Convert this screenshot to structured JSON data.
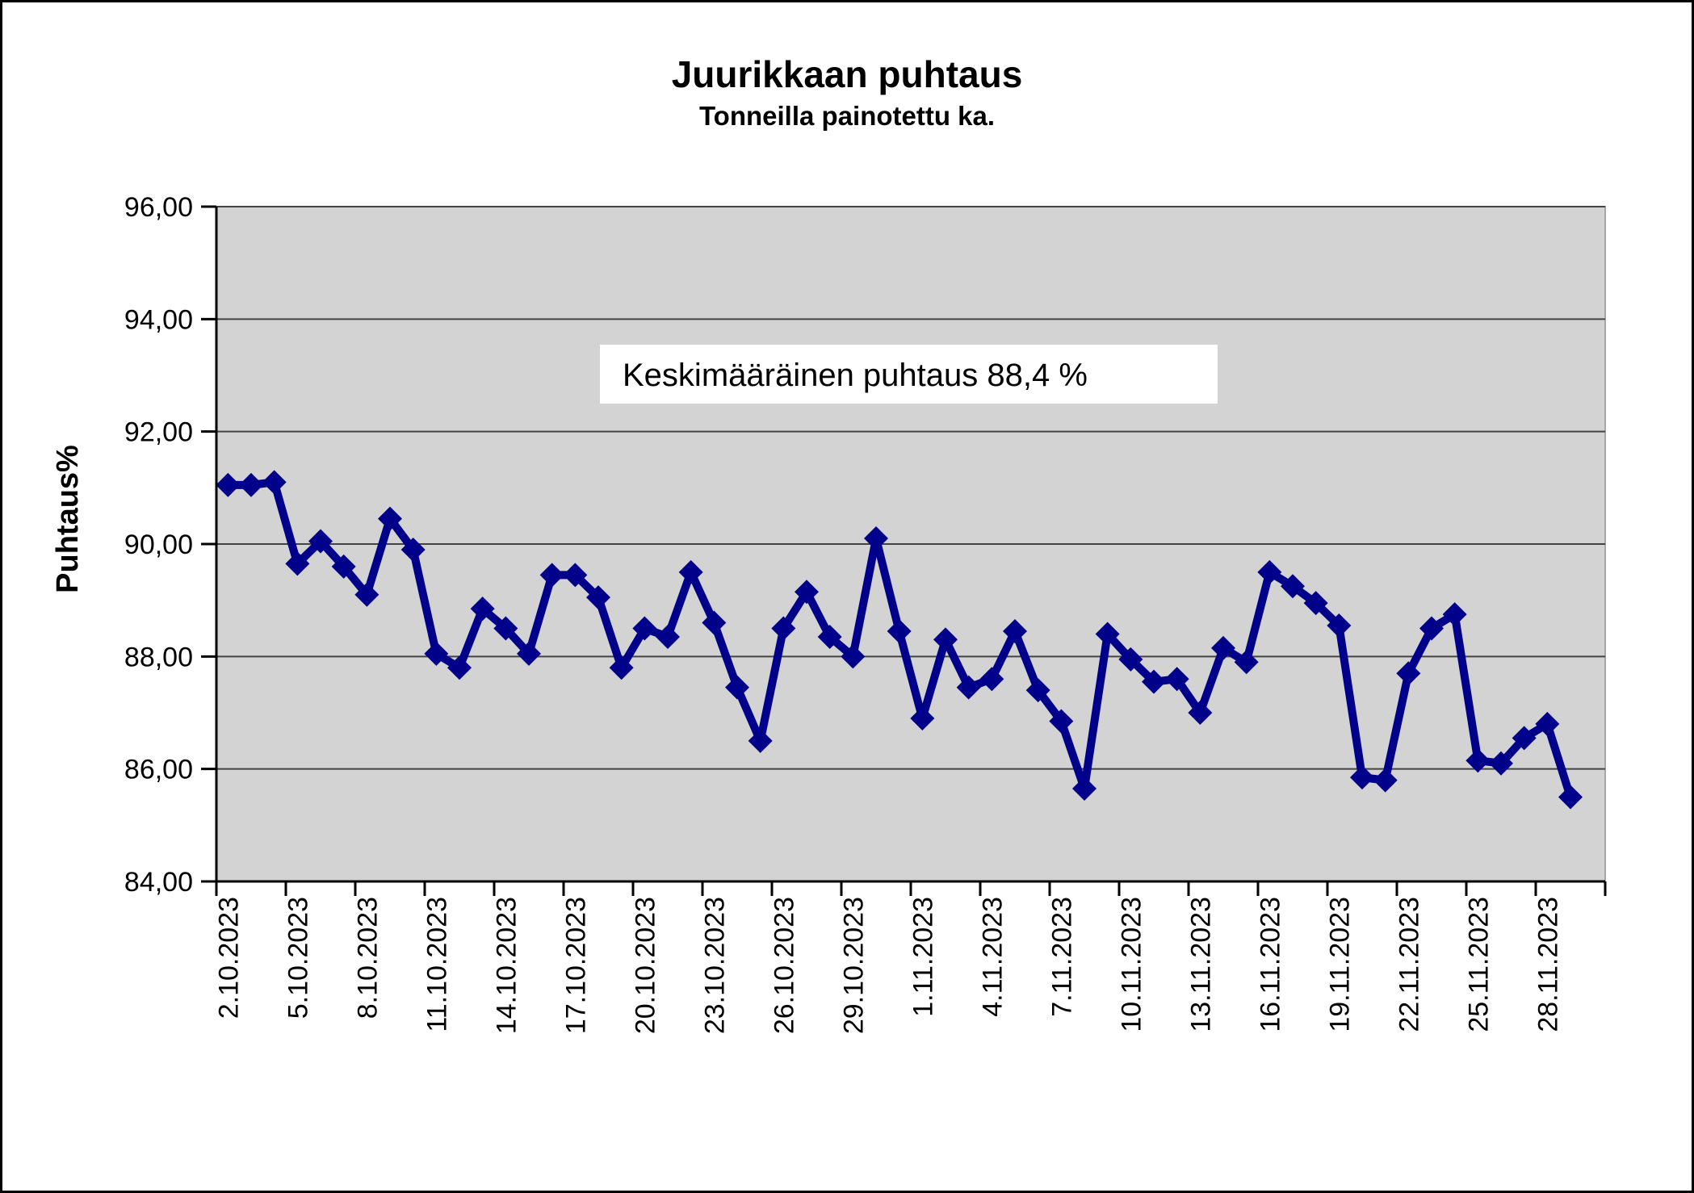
{
  "chart_data": {
    "type": "line",
    "title": "Juurikkaan puhtaus",
    "subtitle": "Tonneilla painotettu ka.",
    "ylabel": "Puhtaus%",
    "annotation": "Keskimääräinen puhtaus 88,4 %",
    "ylim": [
      84,
      96
    ],
    "ytick_step": 2,
    "yticks": [
      {
        "value": 96,
        "label": "96,00"
      },
      {
        "value": 94,
        "label": "94,00"
      },
      {
        "value": 92,
        "label": "92,00"
      },
      {
        "value": 90,
        "label": "90,00"
      },
      {
        "value": 88,
        "label": "88,00"
      },
      {
        "value": 86,
        "label": "86,00"
      },
      {
        "value": 84,
        "label": "84,00"
      }
    ],
    "grid": true,
    "legend": false,
    "marker": "diamond",
    "x_tick_labels": [
      "2.10.2023",
      "5.10.2023",
      "8.10.2023",
      "11.10.2023",
      "14.10.2023",
      "17.10.2023",
      "20.10.2023",
      "23.10.2023",
      "26.10.2023",
      "29.10.2023",
      "1.11.2023",
      "4.11.2023",
      "7.11.2023",
      "10.11.2023",
      "13.11.2023",
      "16.11.2023",
      "19.11.2023",
      "22.11.2023",
      "25.11.2023",
      "28.11.2023"
    ],
    "x": [
      "2.10.2023",
      "3.10.2023",
      "4.10.2023",
      "5.10.2023",
      "6.10.2023",
      "7.10.2023",
      "8.10.2023",
      "9.10.2023",
      "10.10.2023",
      "11.10.2023",
      "12.10.2023",
      "13.10.2023",
      "14.10.2023",
      "15.10.2023",
      "16.10.2023",
      "17.10.2023",
      "18.10.2023",
      "19.10.2023",
      "20.10.2023",
      "21.10.2023",
      "22.10.2023",
      "23.10.2023",
      "24.10.2023",
      "25.10.2023",
      "26.10.2023",
      "27.10.2023",
      "28.10.2023",
      "29.10.2023",
      "30.10.2023",
      "31.10.2023",
      "1.11.2023",
      "2.11.2023",
      "3.11.2023",
      "4.11.2023",
      "5.11.2023",
      "6.11.2023",
      "7.11.2023",
      "8.11.2023",
      "9.11.2023",
      "10.11.2023",
      "11.11.2023",
      "12.11.2023",
      "13.11.2023",
      "14.11.2023",
      "15.11.2023",
      "16.11.2023",
      "17.11.2023",
      "18.11.2023",
      "19.11.2023",
      "20.11.2023",
      "21.11.2023",
      "22.11.2023",
      "23.11.2023",
      "24.11.2023",
      "25.11.2023",
      "26.11.2023",
      "27.11.2023",
      "28.11.2023",
      "29.11.2023"
    ],
    "values": [
      91.05,
      91.05,
      91.1,
      89.65,
      90.05,
      89.6,
      89.1,
      90.45,
      89.9,
      88.05,
      87.8,
      88.85,
      88.5,
      88.05,
      89.45,
      89.45,
      89.05,
      87.8,
      88.5,
      88.35,
      89.5,
      88.6,
      87.45,
      86.5,
      88.5,
      89.15,
      88.35,
      88.0,
      90.1,
      88.45,
      86.9,
      88.3,
      87.45,
      87.6,
      88.45,
      87.4,
      86.85,
      85.65,
      88.4,
      87.95,
      87.55,
      87.6,
      87.0,
      88.15,
      87.9,
      89.5,
      89.25,
      88.95,
      88.55,
      85.85,
      85.8,
      87.7,
      88.5,
      88.75,
      86.15,
      86.1,
      86.55,
      86.8,
      85.5
    ],
    "colors": {
      "line": "#00008B",
      "plot_bg": "#D3D3D3",
      "plot_border": "#A6A6A6",
      "gridline": "#444444",
      "axis": "#000000",
      "annotation_bg": "#FFFFFF",
      "text": "#000000"
    }
  }
}
